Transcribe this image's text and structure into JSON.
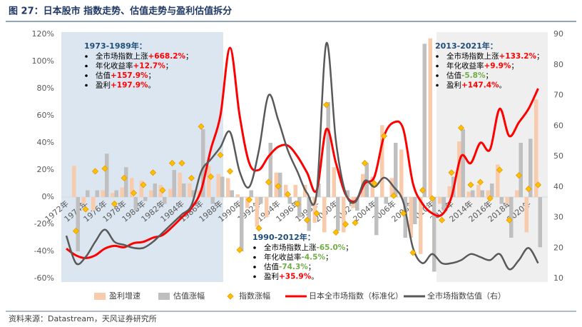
{
  "chart_data": {
    "type": "combo",
    "title": "图 27：日本股市 指数走势、估值走势与盈利估值拆分",
    "source": "资料来源：Datastream，天风证券研究所",
    "categories": [
      "1972年",
      null,
      "1974年",
      null,
      "1976年",
      null,
      "1978年",
      null,
      "1980年",
      null,
      "1982年",
      null,
      "1984年",
      null,
      "1986年",
      null,
      "1988年",
      null,
      "1990年",
      null,
      "1992年",
      null,
      "1994年",
      null,
      "1996年",
      null,
      "1998年",
      null,
      "2000年",
      null,
      "2002年",
      null,
      "2004年",
      null,
      "2006年",
      null,
      "2008年",
      null,
      "2010年",
      null,
      "2012年",
      null,
      "2014年",
      null,
      "2016年",
      null,
      "2018年",
      null,
      "2020年",
      null
    ],
    "series": [
      {
        "name": "盈利增速",
        "color": "#f8cbad",
        "kind": "bar",
        "values": [
          null,
          23,
          -5,
          -10,
          5,
          3,
          7,
          14,
          12,
          5,
          9,
          6,
          18,
          10,
          5,
          23,
          17,
          14,
          2,
          -8,
          -22,
          -15,
          18,
          9,
          9,
          9,
          -19,
          -26,
          22,
          -26,
          -8,
          17,
          15,
          53,
          14,
          35,
          -30,
          -42,
          117,
          -5,
          8,
          41,
          4,
          9,
          5,
          24,
          -5,
          5,
          -26,
          72
        ]
      },
      {
        "name": "估值涨幅",
        "color": "#bfbfbf",
        "kind": "bar",
        "values": [
          null,
          -40,
          5,
          5,
          32,
          5,
          22,
          -10,
          -3,
          10,
          -5,
          20,
          10,
          5,
          50,
          -5,
          15,
          5,
          -40,
          5,
          -5,
          40,
          18,
          -5,
          -15,
          -25,
          10,
          70,
          -25,
          5,
          -10,
          25,
          -28,
          -5,
          40,
          -30,
          -20,
          113,
          -55,
          -10,
          15,
          50,
          5,
          5,
          10,
          -5,
          -30,
          40,
          43,
          -37
        ]
      },
      {
        "name": "指数涨幅",
        "color": "#ffc000",
        "kind": "marker",
        "values": [
          null,
          -25,
          -9,
          19,
          21,
          -5,
          14,
          3,
          9,
          18,
          5,
          25,
          25,
          14,
          52,
          15,
          31,
          19,
          -39,
          -2,
          -23,
          11,
          8,
          2,
          -5,
          -17,
          -12,
          68,
          -26,
          -20,
          -19,
          25,
          10,
          45,
          1,
          -12,
          -41,
          5,
          -1,
          -17,
          18,
          51,
          9,
          11,
          -1,
          20,
          -17,
          16,
          6,
          9
        ]
      },
      {
        "name": "日本全市场指数（标准化）",
        "color": "#ff0000",
        "kind": "line",
        "values": [
          -38,
          -43,
          -45,
          -43,
          -38,
          -36,
          -37,
          -34,
          -33,
          -30,
          -28,
          -22,
          -15,
          -8,
          5,
          35,
          60,
          110,
          60,
          25,
          20,
          30,
          37,
          38,
          30,
          18,
          5,
          50,
          25,
          2,
          -3,
          10,
          15,
          45,
          55,
          50,
          10,
          -5,
          -12,
          -13,
          0,
          30,
          25,
          40,
          35,
          65,
          45,
          55,
          65,
          80
        ]
      },
      {
        "name": "全市场指数估值（右）",
        "color": "#595959",
        "kind": "line",
        "axis": "y2",
        "values": [
          24,
          15,
          17,
          22,
          26,
          22,
          21,
          20,
          20,
          22,
          25,
          28,
          31,
          34,
          45,
          49,
          53,
          58,
          45,
          40,
          52,
          70,
          62,
          52,
          45,
          38,
          38,
          87,
          55,
          38,
          35,
          42,
          40,
          43,
          40,
          35,
          20,
          15,
          18,
          15,
          15,
          16,
          18,
          17,
          16,
          18,
          13,
          16,
          20,
          15
        ]
      }
    ],
    "ylim": [
      -60,
      120
    ],
    "yticks": [
      {
        "value": -60,
        "label": "-60%"
      },
      {
        "value": -40,
        "label": "-40%"
      },
      {
        "value": -20,
        "label": "-20%"
      },
      {
        "value": 0,
        "label": "0%"
      },
      {
        "value": 20,
        "label": "20%"
      },
      {
        "value": 40,
        "label": "40%"
      },
      {
        "value": 60,
        "label": "60%"
      },
      {
        "value": 80,
        "label": "80%"
      },
      {
        "value": 100,
        "label": "100%"
      },
      {
        "value": 120,
        "label": "120%"
      }
    ],
    "y2lim": [
      10,
      90
    ],
    "y2ticks": [
      10,
      20,
      30,
      40,
      50,
      60,
      70,
      80,
      90
    ],
    "grid": false,
    "legend": "bottom",
    "annotations": [
      {
        "title": "1973-1989年：",
        "items": [
          {
            "text": "全市场指数上涨",
            "highlight": "+668.2%",
            "suffix": "；",
            "color": "#ff0000"
          },
          {
            "text": "年化收益率",
            "highlight": "+12.7%",
            "suffix": "；",
            "color": "#ff0000"
          },
          {
            "text": "估值",
            "highlight": "+157.9%",
            "suffix": "；",
            "color": "#ff0000"
          },
          {
            "text": "盈利",
            "highlight": "+197.9%",
            "suffix": "。",
            "color": "#ff0000"
          }
        ]
      },
      {
        "title": "1990-2012年：",
        "items": [
          {
            "text": "全市场指数上涨",
            "highlight": "-65.0%",
            "suffix": "；",
            "color": "#70ad47"
          },
          {
            "text": "年化收益率",
            "highlight": "-4.5%",
            "suffix": "；",
            "color": "#70ad47"
          },
          {
            "text": "估值",
            "highlight": "-74.3%",
            "suffix": "；",
            "color": "#70ad47"
          },
          {
            "text": "盈利",
            "highlight": "+35.9%",
            "suffix": "。",
            "color": "#ff0000"
          }
        ]
      },
      {
        "title": "2013-2021年：",
        "items": [
          {
            "text": "全市场指数上涨",
            "highlight": "+133.2%",
            "suffix": "；",
            "color": "#ff0000"
          },
          {
            "text": "年化收益率",
            "highlight": "+9.9%",
            "suffix": "；",
            "color": "#ff0000"
          },
          {
            "text": "估值",
            "highlight": "-5.8%",
            "suffix": "；",
            "color": "#70ad47"
          },
          {
            "text": "盈利",
            "highlight": "+147.4%",
            "suffix": "。",
            "color": "#ff0000"
          }
        ]
      }
    ]
  }
}
